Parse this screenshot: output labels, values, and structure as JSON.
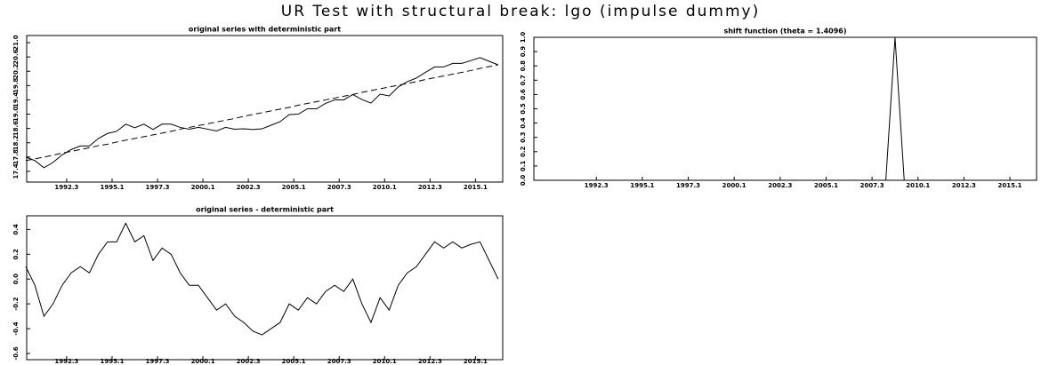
{
  "title": "UR Test with structural break: lgo (impulse dummy)",
  "chart_data": [
    {
      "type": "line",
      "title": "original series with deterministic part",
      "x": [
        1990.25,
        1990.75,
        1991.25,
        1991.75,
        1992.25,
        1992.75,
        1993.25,
        1993.75,
        1994.25,
        1994.75,
        1995.25,
        1995.75,
        1996.25,
        1996.75,
        1997.25,
        1997.75,
        1998.25,
        1998.75,
        1999.25,
        1999.75,
        2000.25,
        2000.75,
        2001.25,
        2001.75,
        2002.25,
        2002.75,
        2003.25,
        2003.75,
        2004.25,
        2004.75,
        2005.25,
        2005.75,
        2006.25,
        2006.75,
        2007.25,
        2007.75,
        2008.25,
        2008.75,
        2009.25,
        2009.75,
        2010.25,
        2010.75,
        2011.25,
        2011.75,
        2012.25,
        2012.75,
        2013.25,
        2013.75,
        2014.25,
        2014.75,
        2015.25,
        2015.75,
        2016.25
      ],
      "series": [
        {
          "color": "#000000",
          "dashed": false,
          "values": [
            17.8,
            17.7,
            17.5,
            17.65,
            17.86,
            18.01,
            18.11,
            18.11,
            18.32,
            18.46,
            18.52,
            18.72,
            18.62,
            18.72,
            18.57,
            18.72,
            18.72,
            18.63,
            18.58,
            18.63,
            18.58,
            18.53,
            18.63,
            18.58,
            18.59,
            18.57,
            18.59,
            18.69,
            18.79,
            18.99,
            19.0,
            19.15,
            19.15,
            19.3,
            19.4,
            19.4,
            19.55,
            19.41,
            19.31,
            19.56,
            19.51,
            19.76,
            19.91,
            20.01,
            20.17,
            20.32,
            20.32,
            20.42,
            20.42,
            20.5,
            20.58,
            20.48,
            20.38
          ]
        },
        {
          "color": "#000000",
          "dashed": true,
          "values": [
            17.7,
            17.75,
            17.8,
            17.85,
            17.91,
            17.96,
            18.01,
            18.06,
            18.12,
            18.16,
            18.22,
            18.27,
            18.32,
            18.37,
            18.42,
            18.47,
            18.52,
            18.58,
            18.63,
            18.68,
            18.73,
            18.78,
            18.83,
            18.88,
            18.94,
            18.99,
            19.04,
            19.09,
            19.14,
            19.19,
            19.25,
            19.3,
            19.35,
            19.4,
            19.45,
            19.5,
            19.55,
            19.61,
            19.66,
            19.71,
            19.76,
            19.81,
            19.86,
            19.91,
            19.97,
            20.02,
            20.07,
            20.12,
            20.17,
            20.22,
            20.28,
            20.33,
            20.38
          ]
        }
      ],
      "xlim": [
        1990.3,
        2016.5
      ],
      "xticks": [
        {
          "value": 1992.5,
          "label": "1992.3"
        },
        {
          "value": 1995.0,
          "label": "1995.1"
        },
        {
          "value": 1997.5,
          "label": "1997.3"
        },
        {
          "value": 2000.0,
          "label": "2000.1"
        },
        {
          "value": 2002.5,
          "label": "2002.3"
        },
        {
          "value": 2005.0,
          "label": "2005.1"
        },
        {
          "value": 2007.5,
          "label": "2007.3"
        },
        {
          "value": 2010.0,
          "label": "2010.1"
        },
        {
          "value": 2012.5,
          "label": "2012.3"
        },
        {
          "value": 2015.0,
          "label": "2015.1"
        }
      ],
      "ylim": [
        17.1,
        21.2
      ],
      "yticks": [
        17.4,
        17.8,
        18.2,
        18.6,
        {
          "value": 19,
          "label": "19.0"
        },
        19.4,
        19.8,
        20.2,
        20.6,
        {
          "value": 21,
          "label": "21.0"
        }
      ]
    },
    {
      "type": "line",
      "title": "shift function (theta = 1.4096)",
      "x": [
        1990.25,
        1990.75,
        1991.25,
        1991.75,
        1992.25,
        1992.75,
        1993.25,
        1993.75,
        1994.25,
        1994.75,
        1995.25,
        1995.75,
        1996.25,
        1996.75,
        1997.25,
        1997.75,
        1998.25,
        1998.75,
        1999.25,
        1999.75,
        2000.25,
        2000.75,
        2001.25,
        2001.75,
        2002.25,
        2002.75,
        2003.25,
        2003.75,
        2004.25,
        2004.75,
        2005.25,
        2005.75,
        2006.25,
        2006.75,
        2007.25,
        2007.75,
        2008.25,
        2008.75,
        2009.25,
        2009.75,
        2010.25,
        2010.75,
        2011.25,
        2011.75,
        2012.25,
        2012.75,
        2013.25,
        2013.75,
        2014.25,
        2014.75,
        2015.25,
        2015.75,
        2016.25
      ],
      "series": [
        {
          "color": "#000000",
          "dashed": false,
          "values": [
            0,
            0,
            0,
            0,
            0,
            0,
            0,
            0,
            0,
            0,
            0,
            0,
            0,
            0,
            0,
            0,
            0,
            0,
            0,
            0,
            0,
            0,
            0,
            0,
            0,
            0,
            0,
            0,
            0,
            0,
            0,
            0,
            0,
            0,
            0,
            0,
            0,
            1,
            0,
            0,
            0,
            0,
            0,
            0,
            0,
            0,
            0,
            0,
            0,
            0,
            0,
            0,
            0
          ]
        }
      ],
      "xlim": [
        1989.1,
        2016.45
      ],
      "xticks": [
        {
          "value": 1992.5,
          "label": "1992.3"
        },
        {
          "value": 1995.0,
          "label": "1995.1"
        },
        {
          "value": 1997.5,
          "label": "1997.3"
        },
        {
          "value": 2000.0,
          "label": "2000.1"
        },
        {
          "value": 2002.5,
          "label": "2002.3"
        },
        {
          "value": 2005.0,
          "label": "2005.1"
        },
        {
          "value": 2007.5,
          "label": "2007.3"
        },
        {
          "value": 2010.0,
          "label": "2010.1"
        },
        {
          "value": 2012.5,
          "label": "2012.3"
        },
        {
          "value": 2015.0,
          "label": "2015.1"
        }
      ],
      "ylim": [
        0,
        1
      ],
      "yticks": [
        {
          "value": 0,
          "label": "0.0"
        },
        0.1,
        0.2,
        0.3,
        0.4,
        0.5,
        0.6,
        0.7,
        0.8,
        0.9,
        {
          "value": 1,
          "label": "1.0"
        }
      ]
    },
    {
      "type": "line",
      "title": "original series - deterministic part",
      "x": [
        1990.25,
        1990.75,
        1991.25,
        1991.75,
        1992.25,
        1992.75,
        1993.25,
        1993.75,
        1994.25,
        1994.75,
        1995.25,
        1995.75,
        1996.25,
        1996.75,
        1997.25,
        1997.75,
        1998.25,
        1998.75,
        1999.25,
        1999.75,
        2000.25,
        2000.75,
        2001.25,
        2001.75,
        2002.25,
        2002.75,
        2003.25,
        2003.75,
        2004.25,
        2004.75,
        2005.25,
        2005.75,
        2006.25,
        2006.75,
        2007.25,
        2007.75,
        2008.25,
        2008.75,
        2009.25,
        2009.75,
        2010.25,
        2010.75,
        2011.25,
        2011.75,
        2012.25,
        2012.75,
        2013.25,
        2013.75,
        2014.25,
        2014.75,
        2015.25,
        2015.75,
        2016.25
      ],
      "series": [
        {
          "color": "#000000",
          "dashed": false,
          "values": [
            0.1,
            -0.05,
            -0.3,
            -0.2,
            -0.05,
            0.05,
            0.1,
            0.05,
            0.2,
            0.3,
            0.3,
            0.45,
            0.3,
            0.35,
            0.15,
            0.25,
            0.2,
            0.05,
            -0.05,
            -0.05,
            -0.15,
            -0.25,
            -0.2,
            -0.3,
            -0.35,
            -0.42,
            -0.45,
            -0.4,
            -0.35,
            -0.2,
            -0.25,
            -0.15,
            -0.2,
            -0.1,
            -0.05,
            -0.1,
            0.0,
            -0.2,
            -0.35,
            -0.15,
            -0.25,
            -0.05,
            0.05,
            0.1,
            0.2,
            0.3,
            0.25,
            0.3,
            0.25,
            0.28,
            0.3,
            0.15,
            0.0
          ]
        }
      ],
      "xlim": [
        1990.3,
        2016.5
      ],
      "xticks": [
        {
          "value": 1992.5,
          "label": "1992.3"
        },
        {
          "value": 1995.0,
          "label": "1995.1"
        },
        {
          "value": 1997.5,
          "label": "1997.3"
        },
        {
          "value": 2000.0,
          "label": "2000.1"
        },
        {
          "value": 2002.5,
          "label": "2002.3"
        },
        {
          "value": 2005.0,
          "label": "2005.1"
        },
        {
          "value": 2007.5,
          "label": "2007.3"
        },
        {
          "value": 2010.0,
          "label": "2010.1"
        },
        {
          "value": 2012.5,
          "label": "2012.3"
        },
        {
          "value": 2015.0,
          "label": "2015.1"
        }
      ],
      "ylim": [
        -0.65,
        0.51
      ],
      "yticks": [
        -0.6,
        -0.4,
        -0.2,
        {
          "value": 0,
          "label": "0.0"
        },
        0.2,
        0.4
      ]
    }
  ]
}
